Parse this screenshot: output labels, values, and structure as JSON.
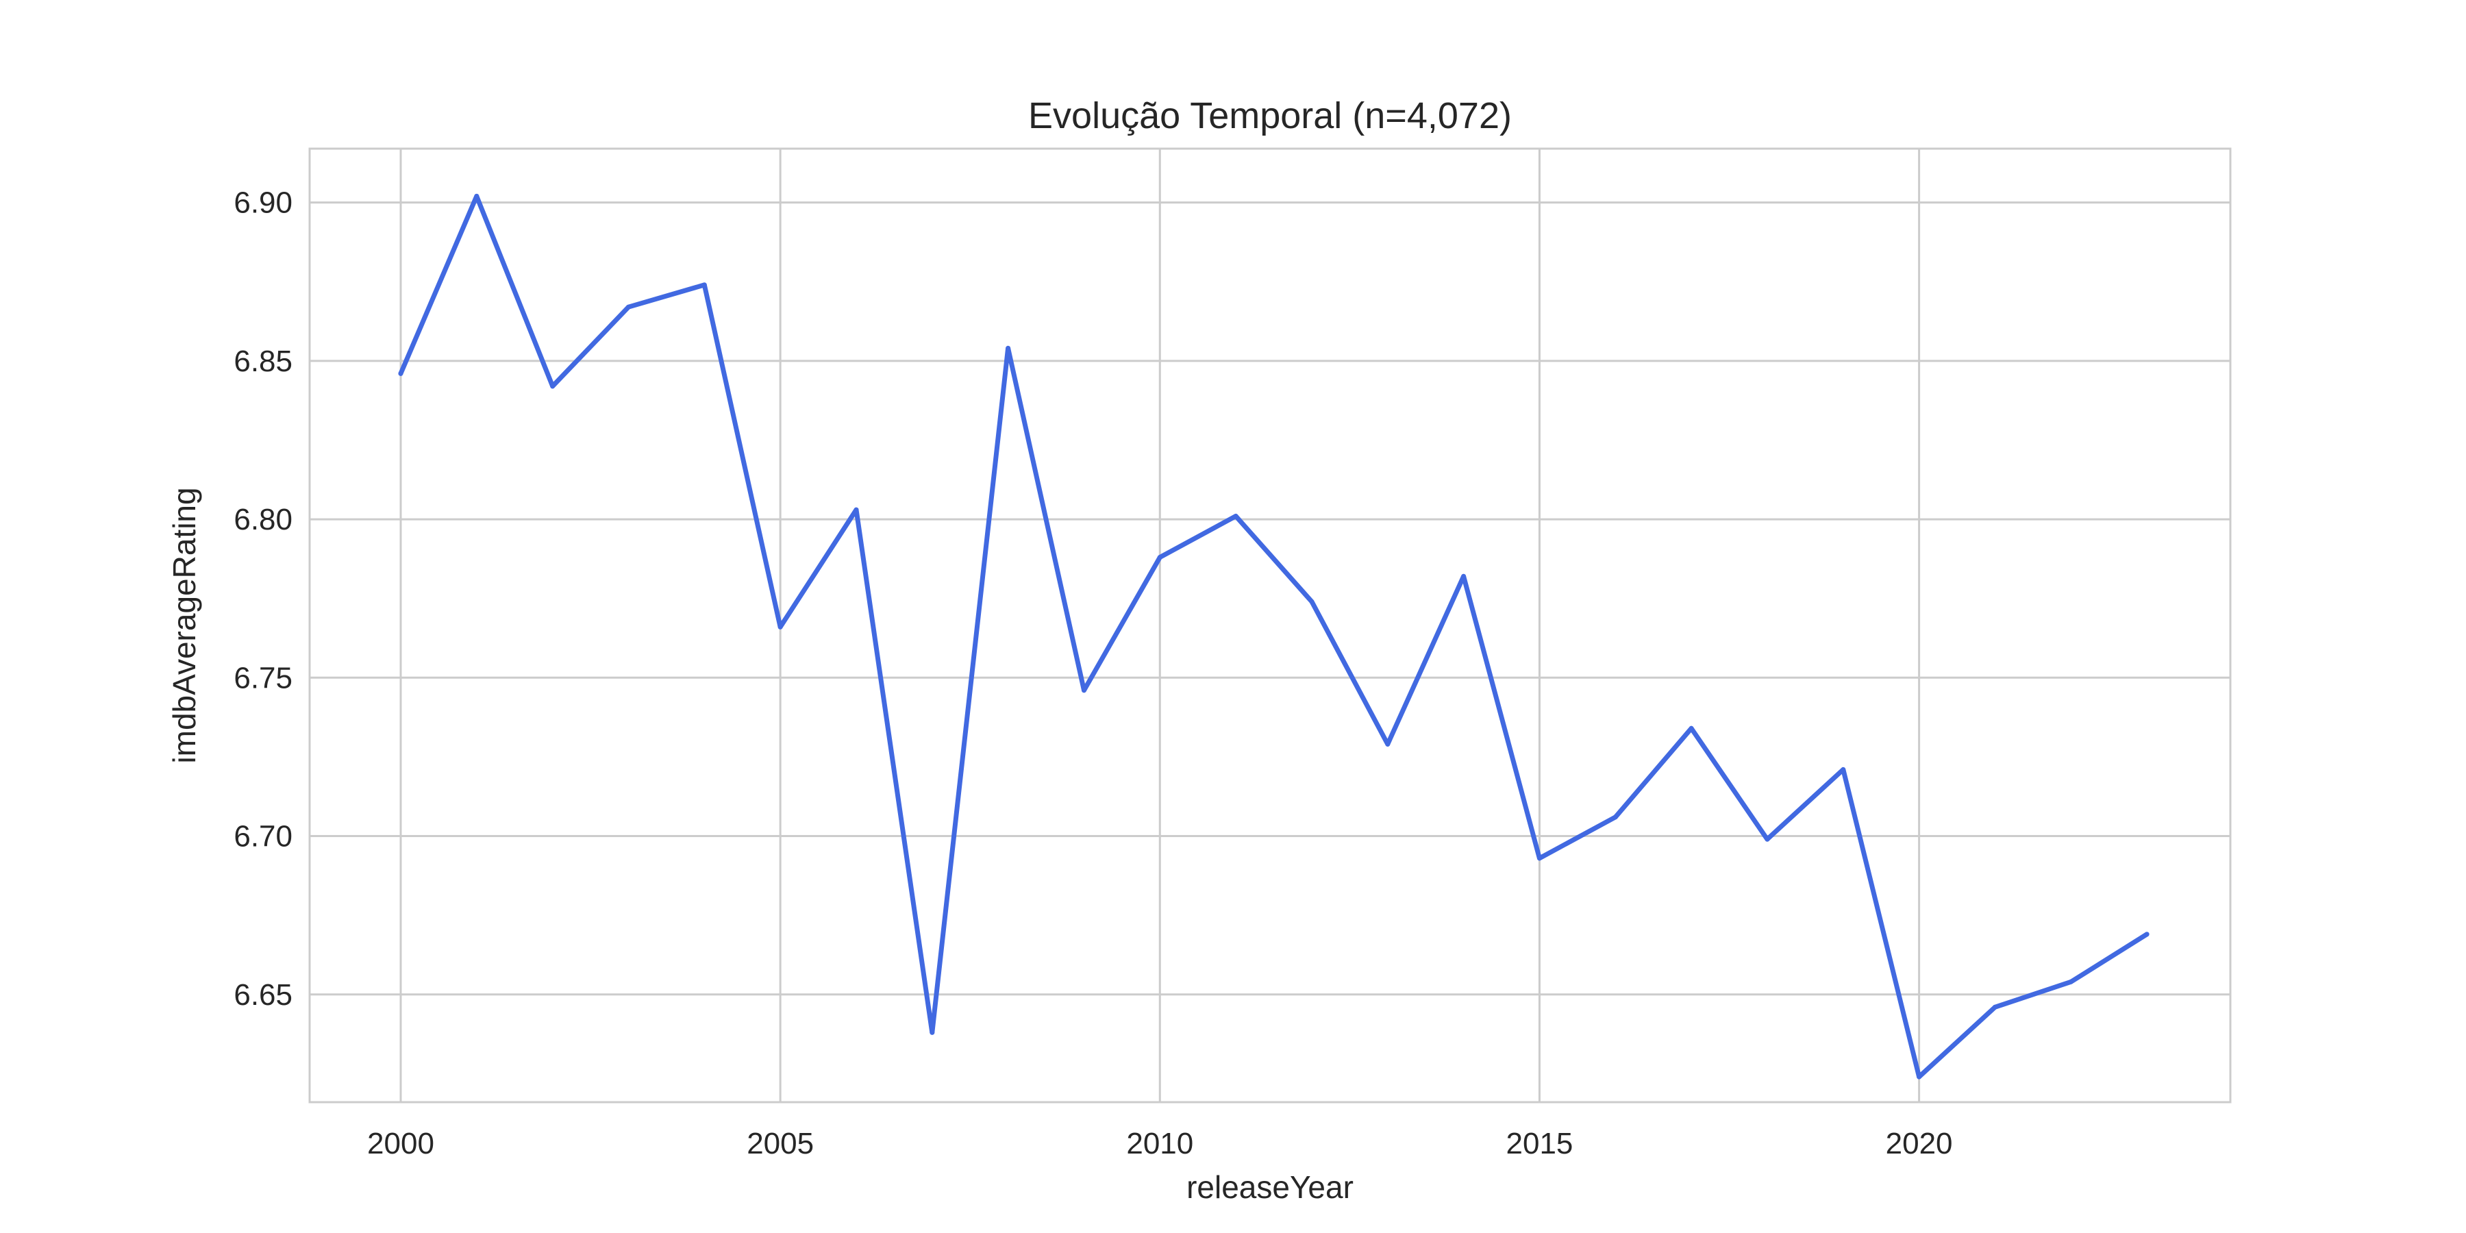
{
  "chart_data": {
    "type": "line",
    "title": "Evolução Temporal (n=4,072)",
    "xlabel": "releaseYear",
    "ylabel": "imdbAverageRating",
    "xlim": [
      1998.8,
      2024.1
    ],
    "ylim": [
      6.616,
      6.917
    ],
    "xticks": [
      2000,
      2005,
      2010,
      2015,
      2020
    ],
    "xtick_labels": [
      "2000",
      "2005",
      "2010",
      "2015",
      "2020"
    ],
    "yticks": [
      6.65,
      6.7,
      6.75,
      6.8,
      6.85,
      6.9
    ],
    "ytick_labels": [
      "6.65",
      "6.70",
      "6.75",
      "6.80",
      "6.85",
      "6.90"
    ],
    "grid": true,
    "line_color": "#4169e1",
    "series": [
      {
        "x": [
          2000,
          2001,
          2002,
          2003,
          2004,
          2005,
          2006,
          2007,
          2008,
          2009,
          2010,
          2011,
          2012,
          2013,
          2014,
          2015,
          2016,
          2017,
          2018,
          2019,
          2020,
          2021,
          2022,
          2023
        ],
        "values": [
          6.846,
          6.902,
          6.842,
          6.867,
          6.874,
          6.766,
          6.803,
          6.638,
          6.854,
          6.746,
          6.788,
          6.801,
          6.774,
          6.729,
          6.782,
          6.693,
          6.706,
          6.734,
          6.699,
          6.721,
          6.624,
          6.646,
          6.654,
          6.669
        ]
      }
    ]
  }
}
